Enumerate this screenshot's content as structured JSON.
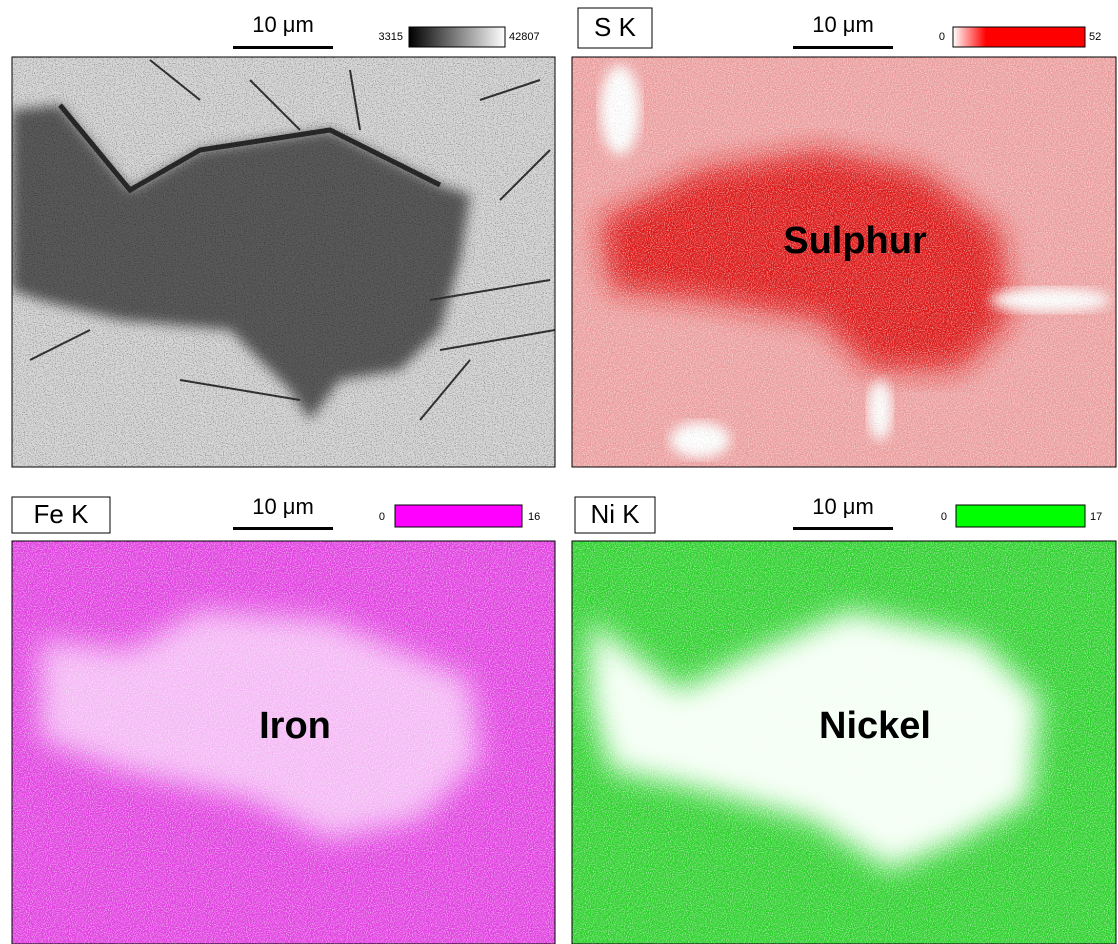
{
  "panels": [
    {
      "scale_bar": "10 μm",
      "color_scale": {
        "min": 3315,
        "max": 42807
      }
    },
    {
      "element": "S K",
      "scale_bar": "10 μm",
      "color_scale": {
        "min": 0,
        "max": 52
      },
      "label": "Sulphur"
    },
    {
      "element": "Fe K",
      "scale_bar": "10 μm",
      "color_scale": {
        "min": 0,
        "max": 16
      },
      "label": "Iron"
    },
    {
      "element": "Ni K",
      "scale_bar": "10 μm",
      "color_scale": {
        "min": 0,
        "max": 17
      },
      "label": "Nickel"
    }
  ]
}
